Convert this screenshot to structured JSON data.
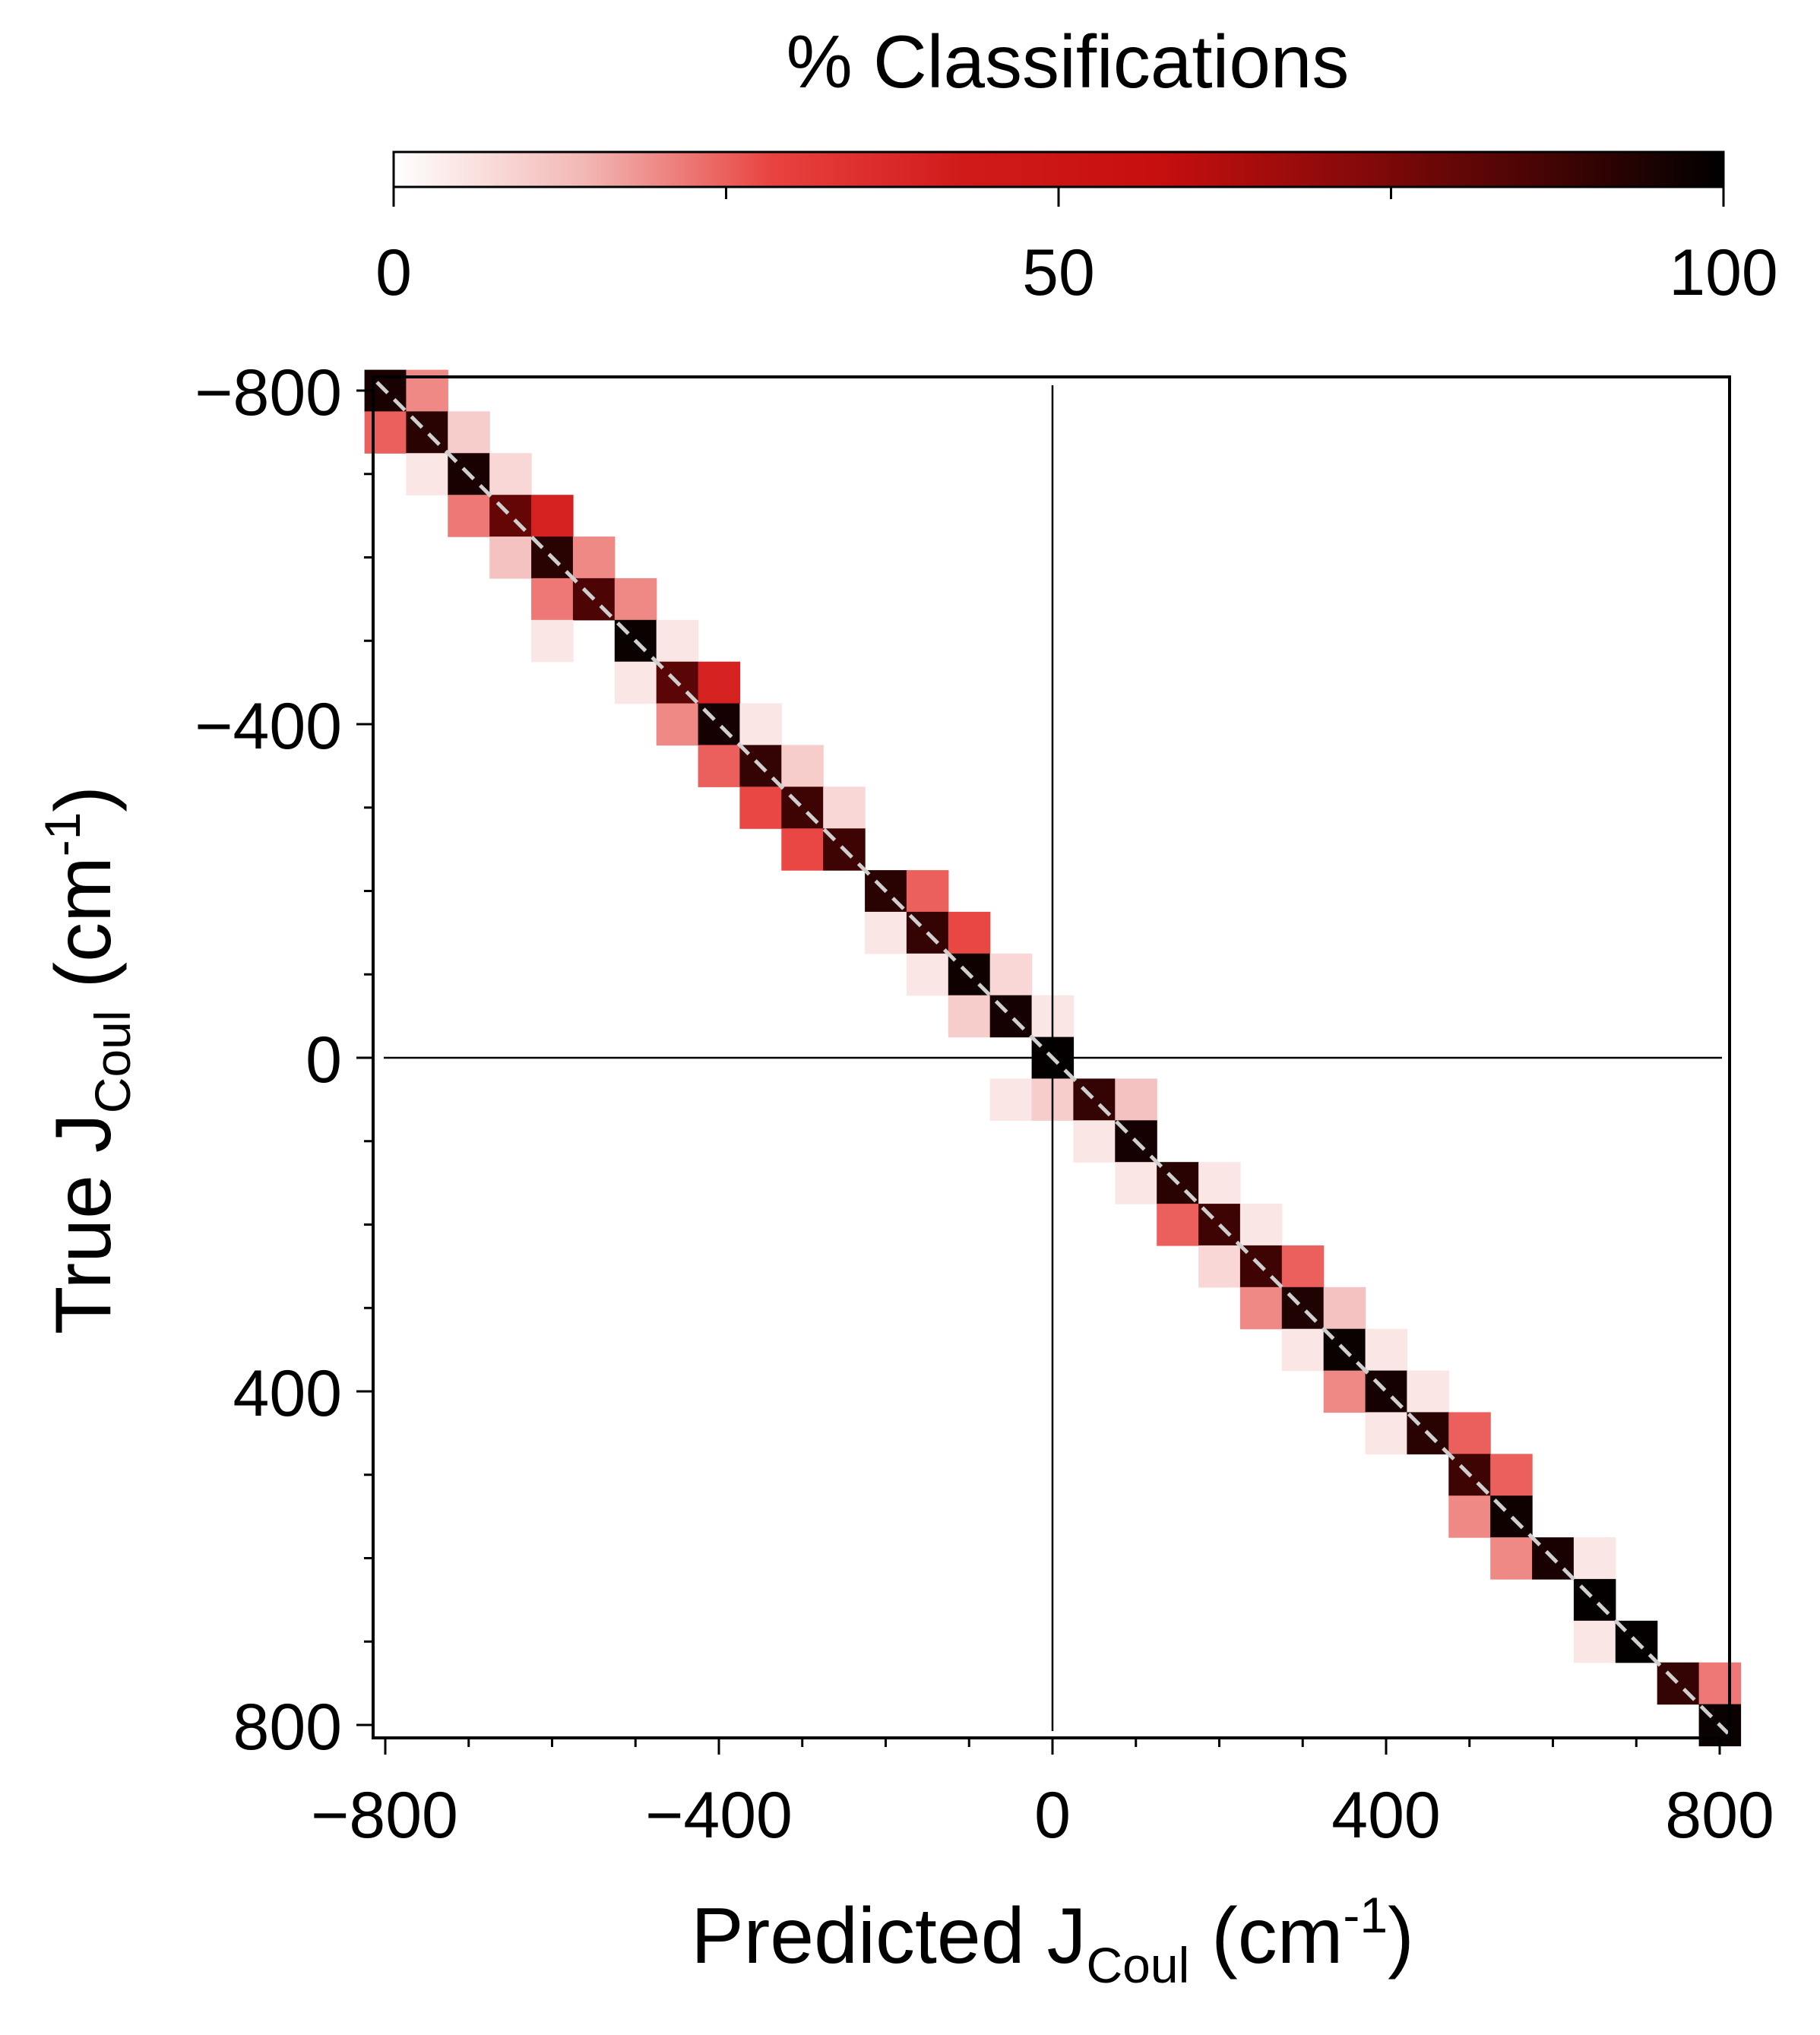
{
  "chart_data": {
    "type": "heatmap",
    "colorbar": {
      "title": "% Classifications",
      "ticks": [
        "0",
        "50",
        "100"
      ],
      "range": [
        0,
        100
      ],
      "colors": [
        "#ffffff",
        "#f2b8b5",
        "#e8423f",
        "#d01a1a",
        "#c80f0f",
        "#8b0a0a",
        "#4a0404",
        "#000000"
      ]
    },
    "xlabel": {
      "main": "Predicted J",
      "sub": "Coul",
      "unit_pre": " (cm",
      "sup": "-1",
      "unit_post": ")"
    },
    "ylabel": {
      "main": "True J",
      "sub": "Coul",
      "unit_pre": " (cm",
      "sup": "-1",
      "unit_post": ")"
    },
    "x_ticks": [
      "−800",
      "−400",
      "0",
      "400",
      "800"
    ],
    "y_ticks": [
      "−800",
      "−400",
      "0",
      "400",
      "800"
    ],
    "xlim": [
      -810,
      810
    ],
    "ylim": [
      -810,
      810
    ],
    "y_inverted": true,
    "bin_width": 50,
    "reference_lines": [
      {
        "type": "vertical",
        "x": 0
      },
      {
        "type": "horizontal",
        "y": 0
      }
    ],
    "identity_line": {
      "style": "dashed",
      "color": "#cfcfcf"
    },
    "cells": [
      {
        "x": -800,
        "y": -800,
        "v": 95
      },
      {
        "x": -750,
        "y": -800,
        "v": 20
      },
      {
        "x": -800,
        "y": -750,
        "v": 25
      },
      {
        "x": -750,
        "y": -750,
        "v": 92
      },
      {
        "x": -700,
        "y": -750,
        "v": 10
      },
      {
        "x": -750,
        "y": -700,
        "v": 5
      },
      {
        "x": -700,
        "y": -700,
        "v": 95
      },
      {
        "x": -650,
        "y": -700,
        "v": 8
      },
      {
        "x": -700,
        "y": -650,
        "v": 22
      },
      {
        "x": -650,
        "y": -650,
        "v": 80
      },
      {
        "x": -600,
        "y": -650,
        "v": 40
      },
      {
        "x": -650,
        "y": -600,
        "v": 12
      },
      {
        "x": -600,
        "y": -600,
        "v": 92
      },
      {
        "x": -550,
        "y": -600,
        "v": 20
      },
      {
        "x": -600,
        "y": -550,
        "v": 22
      },
      {
        "x": -550,
        "y": -550,
        "v": 85
      },
      {
        "x": -500,
        "y": -550,
        "v": 20
      },
      {
        "x": -600,
        "y": -500,
        "v": 5
      },
      {
        "x": -500,
        "y": -500,
        "v": 98
      },
      {
        "x": -450,
        "y": -500,
        "v": 5
      },
      {
        "x": -500,
        "y": -450,
        "v": 5
      },
      {
        "x": -450,
        "y": -450,
        "v": 82
      },
      {
        "x": -400,
        "y": -450,
        "v": 40
      },
      {
        "x": -450,
        "y": -400,
        "v": 20
      },
      {
        "x": -400,
        "y": -400,
        "v": 96
      },
      {
        "x": -350,
        "y": -400,
        "v": 5
      },
      {
        "x": -400,
        "y": -350,
        "v": 25
      },
      {
        "x": -350,
        "y": -350,
        "v": 90
      },
      {
        "x": -300,
        "y": -350,
        "v": 10
      },
      {
        "x": -350,
        "y": -300,
        "v": 28
      },
      {
        "x": -300,
        "y": -300,
        "v": 88
      },
      {
        "x": -250,
        "y": -300,
        "v": 8
      },
      {
        "x": -300,
        "y": -250,
        "v": 28
      },
      {
        "x": -250,
        "y": -250,
        "v": 88
      },
      {
        "x": -200,
        "y": -200,
        "v": 92
      },
      {
        "x": -150,
        "y": -200,
        "v": 25
      },
      {
        "x": -200,
        "y": -150,
        "v": 5
      },
      {
        "x": -150,
        "y": -150,
        "v": 90
      },
      {
        "x": -100,
        "y": -150,
        "v": 28
      },
      {
        "x": -150,
        "y": -100,
        "v": 5
      },
      {
        "x": -100,
        "y": -100,
        "v": 97
      },
      {
        "x": -50,
        "y": -100,
        "v": 8
      },
      {
        "x": -100,
        "y": -50,
        "v": 10
      },
      {
        "x": -50,
        "y": -50,
        "v": 96
      },
      {
        "x": 0,
        "y": -50,
        "v": 5
      },
      {
        "x": 0,
        "y": 0,
        "v": 99
      },
      {
        "x": -50,
        "y": 50,
        "v": 5
      },
      {
        "x": 0,
        "y": 50,
        "v": 10
      },
      {
        "x": 50,
        "y": 50,
        "v": 90
      },
      {
        "x": 100,
        "y": 50,
        "v": 12
      },
      {
        "x": 50,
        "y": 100,
        "v": 5
      },
      {
        "x": 100,
        "y": 100,
        "v": 96
      },
      {
        "x": 100,
        "y": 150,
        "v": 5
      },
      {
        "x": 150,
        "y": 150,
        "v": 92
      },
      {
        "x": 200,
        "y": 150,
        "v": 5
      },
      {
        "x": 150,
        "y": 200,
        "v": 25
      },
      {
        "x": 200,
        "y": 200,
        "v": 88
      },
      {
        "x": 250,
        "y": 200,
        "v": 5
      },
      {
        "x": 200,
        "y": 250,
        "v": 8
      },
      {
        "x": 250,
        "y": 250,
        "v": 88
      },
      {
        "x": 300,
        "y": 250,
        "v": 25
      },
      {
        "x": 250,
        "y": 300,
        "v": 20
      },
      {
        "x": 300,
        "y": 300,
        "v": 94
      },
      {
        "x": 350,
        "y": 300,
        "v": 12
      },
      {
        "x": 300,
        "y": 350,
        "v": 5
      },
      {
        "x": 350,
        "y": 350,
        "v": 98
      },
      {
        "x": 400,
        "y": 350,
        "v": 5
      },
      {
        "x": 350,
        "y": 400,
        "v": 20
      },
      {
        "x": 400,
        "y": 400,
        "v": 96
      },
      {
        "x": 450,
        "y": 400,
        "v": 5
      },
      {
        "x": 400,
        "y": 450,
        "v": 5
      },
      {
        "x": 450,
        "y": 450,
        "v": 92
      },
      {
        "x": 500,
        "y": 450,
        "v": 25
      },
      {
        "x": 500,
        "y": 500,
        "v": 88
      },
      {
        "x": 550,
        "y": 500,
        "v": 25
      },
      {
        "x": 500,
        "y": 550,
        "v": 20
      },
      {
        "x": 550,
        "y": 550,
        "v": 97
      },
      {
        "x": 550,
        "y": 600,
        "v": 20
      },
      {
        "x": 600,
        "y": 600,
        "v": 95
      },
      {
        "x": 650,
        "y": 600,
        "v": 5
      },
      {
        "x": 650,
        "y": 650,
        "v": 99
      },
      {
        "x": 650,
        "y": 700,
        "v": 5
      },
      {
        "x": 700,
        "y": 700,
        "v": 99
      },
      {
        "x": 750,
        "y": 750,
        "v": 90
      },
      {
        "x": 800,
        "y": 750,
        "v": 22
      },
      {
        "x": 800,
        "y": 800,
        "v": 98
      }
    ]
  }
}
